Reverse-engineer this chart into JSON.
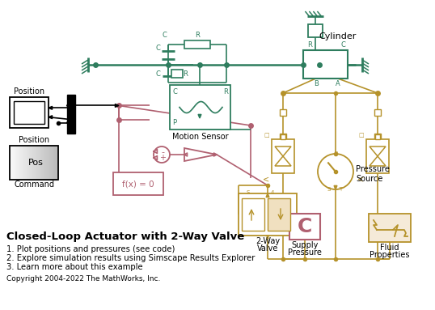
{
  "bg_color": "#ffffff",
  "gc": "#2e7d5e",
  "gold": "#b5922a",
  "pink": "#b06070",
  "blk": "#000000",
  "title": "Closed-Loop Actuator with 2-Way Valve",
  "bullet1": "1. Plot positions and pressures (see code)",
  "bullet2": "2. Explore simulation results using Simscape Results Explorer",
  "bullet3": "3. Learn more about this example",
  "copyright": "Copyright 2004-2022 The MathWorks, Inc.",
  "label_position": "Position",
  "label_pos_cmd": "Position\nCommand",
  "label_motion_sensor": "Motion Sensor",
  "label_2way_valve": "2-Way\nValve",
  "label_cylinder": "Cylinder",
  "label_pressure_source": "Pressure\nSource",
  "label_supply_pressure": "Supply\nPressure",
  "label_fluid_props": "Fluid\nProperties",
  "label_fx0": "f(x) = 0"
}
